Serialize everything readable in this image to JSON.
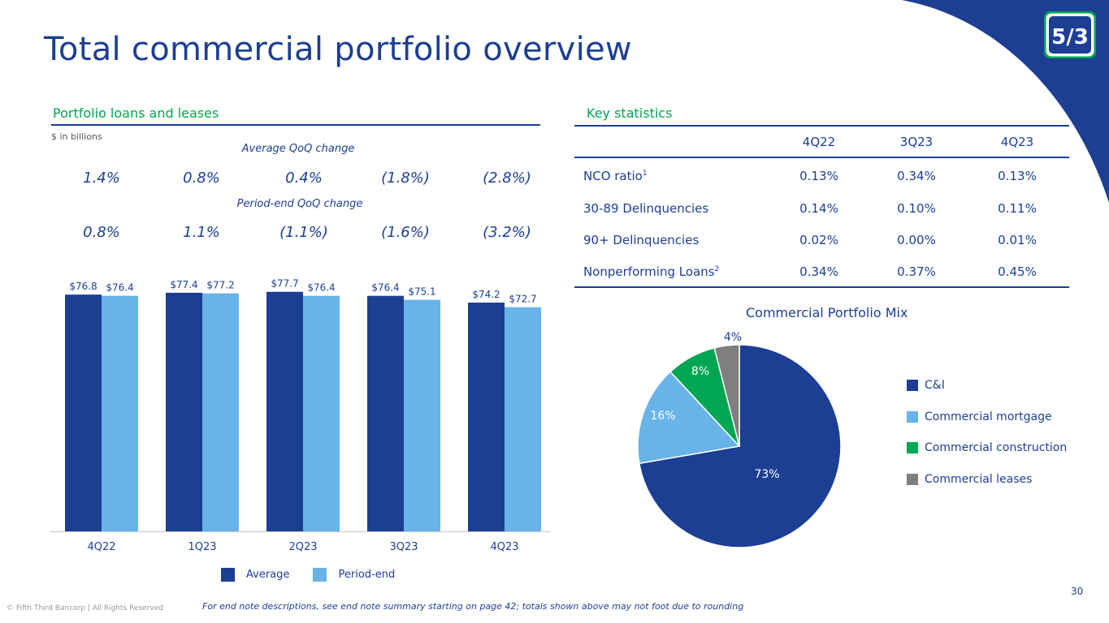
{
  "page": {
    "title": "Total commercial portfolio overview",
    "page_number": "30",
    "footnote": "For end note descriptions, see end note summary starting on page 42; totals shown above may not foot due to rounding",
    "copyright": "© Fifth Third Bancorp | All Rights Reserved",
    "logo_text": "5/3"
  },
  "colors": {
    "navy": "#1c3f94",
    "light_blue": "#68b3e8",
    "green": "#00a651",
    "gray": "#7f7f7f"
  },
  "left": {
    "section_title": "Portfolio loans and leases",
    "units_note": "$ in billions",
    "avg_qoq_label": "Average QoQ change",
    "avg_qoq_values": [
      "1.4%",
      "0.8%",
      "0.4%",
      "(1.8%)",
      "(2.8%)"
    ],
    "pe_qoq_label": "Period-end QoQ change",
    "pe_qoq_values": [
      "0.8%",
      "1.1%",
      "(1.1%)",
      "(1.6%)",
      "(3.2%)"
    ]
  },
  "chart_data": [
    {
      "type": "bar",
      "categories": [
        "4Q22",
        "1Q23",
        "2Q23",
        "3Q23",
        "4Q23"
      ],
      "series": [
        {
          "name": "Average",
          "values": [
            76.8,
            77.4,
            77.7,
            76.4,
            74.2
          ],
          "labels": [
            "$76.8",
            "$77.4",
            "$77.7",
            "$76.4",
            "$74.2"
          ],
          "color": "#1c3f94"
        },
        {
          "name": "Period-end",
          "values": [
            76.4,
            77.2,
            76.4,
            75.1,
            72.7
          ],
          "labels": [
            "$76.4",
            "$77.2",
            "$76.4",
            "$75.1",
            "$72.7"
          ],
          "color": "#68b3e8"
        }
      ],
      "ylim": [
        0,
        80
      ],
      "legend": "bottom"
    },
    {
      "type": "pie",
      "title": "Commercial Portfolio Mix",
      "categories": [
        "C&I",
        "Commercial mortgage",
        "Commercial construction",
        "Commercial leases"
      ],
      "values": [
        73,
        16,
        8,
        4
      ],
      "labels": [
        "73%",
        "16%",
        "8%",
        "4%"
      ],
      "colors": [
        "#1c3f94",
        "#68b3e8",
        "#00a651",
        "#7f7f7f"
      ],
      "legend": "right"
    }
  ],
  "right": {
    "section_title": "Key statistics",
    "columns": [
      "4Q22",
      "3Q23",
      "4Q23"
    ],
    "rows": [
      {
        "label": "NCO ratio",
        "sup": "1",
        "values": [
          "0.13%",
          "0.34%",
          "0.13%"
        ]
      },
      {
        "label": "30-89 Delinquencies",
        "sup": "",
        "values": [
          "0.14%",
          "0.10%",
          "0.11%"
        ]
      },
      {
        "label": "90+ Delinquencies",
        "sup": "",
        "values": [
          "0.02%",
          "0.00%",
          "0.01%"
        ]
      },
      {
        "label": "Nonperforming Loans",
        "sup": "2",
        "values": [
          "0.34%",
          "0.37%",
          "0.45%"
        ]
      }
    ]
  }
}
